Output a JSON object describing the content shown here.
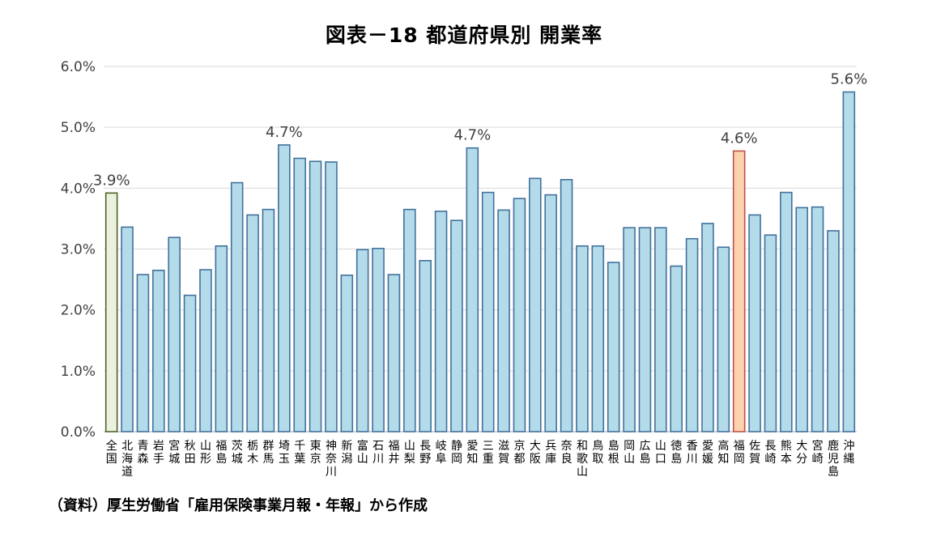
{
  "chart_data": {
    "type": "bar",
    "title": "図表－18 都道府県別 開業率",
    "xlabel": "",
    "ylabel": "",
    "ylim": [
      0,
      6
    ],
    "yticks": [
      "0.0%",
      "1.0%",
      "2.0%",
      "3.0%",
      "4.0%",
      "5.0%",
      "6.0%"
    ],
    "grid": true,
    "legend": "none",
    "categories": [
      "全国",
      "北海道",
      "青森",
      "岩手",
      "宮城",
      "秋田",
      "山形",
      "福島",
      "茨城",
      "栃木",
      "群馬",
      "埼玉",
      "千葉",
      "東京",
      "神奈川",
      "新潟",
      "富山",
      "石川",
      "福井",
      "山梨",
      "長野",
      "岐阜",
      "静岡",
      "愛知",
      "三重",
      "滋賀",
      "京都",
      "大阪",
      "兵庫",
      "奈良",
      "和歌山",
      "鳥取",
      "島根",
      "岡山",
      "広島",
      "山口",
      "徳島",
      "香川",
      "愛媛",
      "高知",
      "福岡",
      "佐賀",
      "長崎",
      "熊本",
      "大分",
      "宮崎",
      "鹿児島",
      "沖縄"
    ],
    "values": [
      3.92,
      3.36,
      2.58,
      2.65,
      3.19,
      2.24,
      2.66,
      3.05,
      4.09,
      3.56,
      3.65,
      4.71,
      4.49,
      4.44,
      4.43,
      2.57,
      2.99,
      3.01,
      2.58,
      3.65,
      2.81,
      3.62,
      3.47,
      4.66,
      3.93,
      3.64,
      3.83,
      4.16,
      3.89,
      4.14,
      3.05,
      3.05,
      2.78,
      3.35,
      3.35,
      3.35,
      2.72,
      3.17,
      3.42,
      3.03,
      4.61,
      3.56,
      3.23,
      3.93,
      3.68,
      3.69,
      3.3,
      5.58
    ],
    "data_labels": [
      {
        "category": "全国",
        "text": "3.9%"
      },
      {
        "category": "埼玉",
        "text": "4.7%"
      },
      {
        "category": "愛知",
        "text": "4.7%"
      },
      {
        "category": "福岡",
        "text": "4.6%"
      },
      {
        "category": "沖縄",
        "text": "5.6%"
      }
    ],
    "colors": {
      "default_fill": "#b3dbe9",
      "default_stroke": "#41719c",
      "national_fill": "#ebf1de",
      "national_stroke": "#4f6228",
      "fukuoka_fill": "#fdd2ae",
      "fukuoka_stroke": "#c0504d",
      "grid": "#d9d9d9",
      "axis": "#a6a6a6"
    },
    "highlight": {
      "national": "全国",
      "focus": "福岡"
    }
  },
  "source_note": "（資料）厚生労働省「雇用保険事業月報・年報」から作成"
}
